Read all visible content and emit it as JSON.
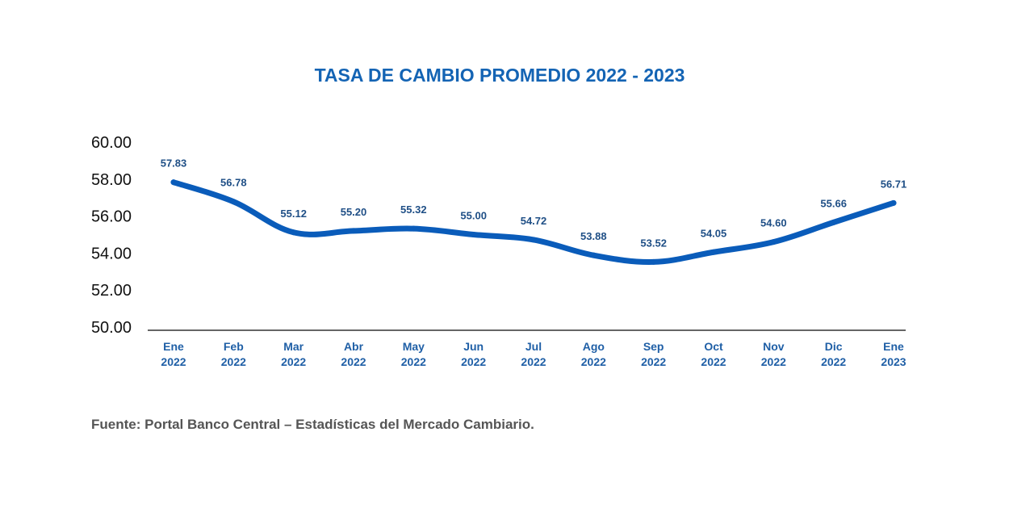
{
  "colors": {
    "line": "#0a5cba",
    "title": "#1464b4",
    "axis": "#333333",
    "tick_x": "#1f5fa6",
    "data_label": "#1f4f86",
    "source": "#555555"
  },
  "source_note": "Fuente: Portal Banco Central – Estadísticas del Mercado Cambiario.",
  "chart_data": {
    "type": "line",
    "title": "TASA DE CAMBIO PROMEDIO 2022 - 2023",
    "xlabel": "",
    "ylabel": "",
    "categories": [
      [
        "Ene",
        "2022"
      ],
      [
        "Feb",
        "2022"
      ],
      [
        "Mar",
        "2022"
      ],
      [
        "Abr",
        "2022"
      ],
      [
        "May",
        "2022"
      ],
      [
        "Jun",
        "2022"
      ],
      [
        "Jul",
        "2022"
      ],
      [
        "Ago",
        "2022"
      ],
      [
        "Sep",
        "2022"
      ],
      [
        "Oct",
        "2022"
      ],
      [
        "Nov",
        "2022"
      ],
      [
        "Dic",
        "2022"
      ],
      [
        "Ene",
        "2023"
      ]
    ],
    "values": [
      57.83,
      56.78,
      55.12,
      55.2,
      55.32,
      55.0,
      54.72,
      53.88,
      53.52,
      54.05,
      54.6,
      55.66,
      56.71
    ],
    "data_labels": [
      "57.83",
      "56.78",
      "55.12",
      "55.20",
      "55.32",
      "55.00",
      "54.72",
      "53.88",
      "53.52",
      "54.05",
      "54.60",
      "55.66",
      "56.71"
    ],
    "ylim": [
      50,
      60
    ],
    "yticks": [
      "50.00",
      "52.00",
      "54.00",
      "56.00",
      "58.00",
      "60.00"
    ],
    "grid": false,
    "legend": "none"
  }
}
